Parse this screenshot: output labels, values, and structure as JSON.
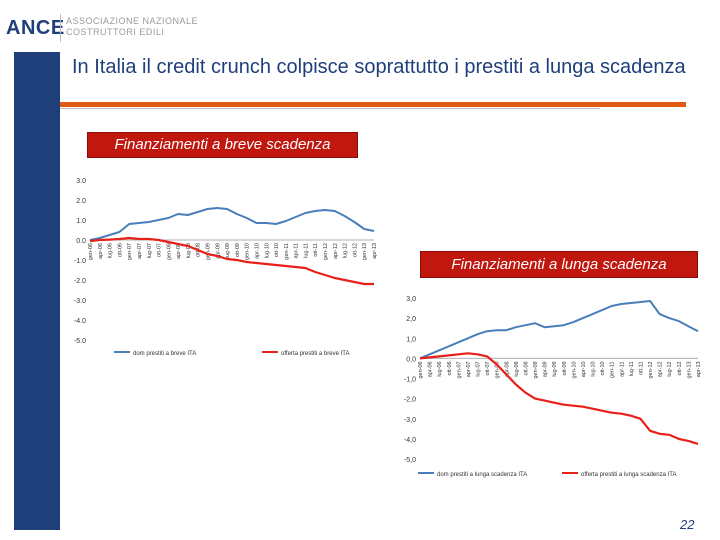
{
  "header": {
    "logo_text": "ANCE",
    "logo_subtitle_1": "ASSOCIAZIONE NAZIONALE",
    "logo_subtitle_2": "COSTRUTTORI EDILI",
    "title": "In Italia il credit crunch colpisce soprattutto i prestiti a lunga scadenza",
    "brand_color": "#1f3f7a",
    "accent_color": "#e05a14"
  },
  "labels": {
    "short_term": "Finanziamenti a breve scadenza",
    "long_term": "Finanziamenti a lunga scadenza"
  },
  "page_number": "22",
  "chart_data": [
    {
      "type": "line",
      "title": "Finanziamenti a breve scadenza",
      "ylim": [
        -5.0,
        3.0
      ],
      "yticks": [
        "3.0",
        "2.0",
        "1.0",
        "0.0",
        "-1.0",
        "-2.0",
        "-3.0",
        "-4.0",
        "-5.0"
      ],
      "ytick_values": [
        3,
        2,
        1,
        0,
        -1,
        -2,
        -3,
        -4,
        -5
      ],
      "categories": [
        "gen-06",
        "apr-06",
        "lug-06",
        "ott-06",
        "gen-07",
        "apr-07",
        "lug-07",
        "ott-07",
        "gen-08",
        "apr-08",
        "lug-08",
        "ott-08",
        "gen-09",
        "apr-09",
        "lug-09",
        "ott-09",
        "gen-10",
        "apr-10",
        "lug-10",
        "ott-10",
        "gen-11",
        "apr-11",
        "lug-11",
        "ott-11",
        "gen-12",
        "apr-12",
        "lug-12",
        "ott-12",
        "gen-13",
        "apr-13"
      ],
      "series": [
        {
          "name": "dom prestiti a breve ITA",
          "color": "#4a7ebb",
          "values": [
            0.0,
            0.1,
            0.25,
            0.4,
            0.8,
            0.85,
            0.9,
            1.0,
            1.1,
            1.3,
            1.25,
            1.4,
            1.55,
            1.6,
            1.55,
            1.3,
            1.1,
            0.85,
            0.85,
            0.8,
            0.95,
            1.15,
            1.35,
            1.45,
            1.5,
            1.45,
            1.2,
            0.9,
            0.55,
            0.45
          ]
        },
        {
          "name": "offerta prestiti a breve ITA",
          "color": "#e8201a",
          "values": [
            -0.05,
            0.0,
            0.02,
            0.05,
            0.1,
            0.05,
            0.05,
            0.0,
            -0.1,
            -0.2,
            -0.3,
            -0.5,
            -0.7,
            -0.8,
            -0.95,
            -1.0,
            -1.1,
            -1.15,
            -1.2,
            -1.25,
            -1.3,
            -1.35,
            -1.4,
            -1.6,
            -1.75,
            -1.9,
            -2.0,
            -2.1,
            -2.2,
            -2.2
          ]
        }
      ]
    },
    {
      "type": "line",
      "title": "Finanziamenti a lunga scadenza",
      "ylim": [
        -5.0,
        3.0
      ],
      "yticks": [
        "3,0",
        "2,0",
        "1,0",
        "0,0",
        "-1,0",
        "-2,0",
        "-3,0",
        "-4,0",
        "-5,0"
      ],
      "ytick_values": [
        3,
        2,
        1,
        0,
        -1,
        -2,
        -3,
        -4,
        -5
      ],
      "categories": [
        "gen-06",
        "apr-06",
        "lug-06",
        "ott-06",
        "gen-07",
        "apr-07",
        "lug-07",
        "ott-07",
        "gen-08",
        "apr-08",
        "lug-08",
        "ott-08",
        "gen-09",
        "apr-09",
        "lug-09",
        "ott-09",
        "gen-10",
        "apr-10",
        "lug-10",
        "ott-10",
        "gen-11",
        "apr-11",
        "lug-11",
        "ott-11",
        "gen-12",
        "apr-12",
        "lug-12",
        "ott-12",
        "gen-13",
        "apr-13"
      ],
      "series": [
        {
          "name": "dom prestiti a lunga scadenza ITA",
          "color": "#4a7ebb",
          "values": [
            0.0,
            0.2,
            0.4,
            0.6,
            0.8,
            1.0,
            1.2,
            1.35,
            1.4,
            1.4,
            1.55,
            1.65,
            1.75,
            1.55,
            1.6,
            1.65,
            1.8,
            2.0,
            2.2,
            2.4,
            2.6,
            2.7,
            2.75,
            2.8,
            2.85,
            2.2,
            2.0,
            1.85,
            1.6,
            1.35
          ]
        },
        {
          "name": "offerta prestiti a lunga scadenza ITA",
          "color": "#e8201a",
          "values": [
            0.0,
            0.05,
            0.1,
            0.15,
            0.2,
            0.25,
            0.2,
            0.1,
            -0.3,
            -0.8,
            -1.3,
            -1.7,
            -2.0,
            -2.1,
            -2.2,
            -2.3,
            -2.35,
            -2.4,
            -2.5,
            -2.6,
            -2.7,
            -2.75,
            -2.85,
            -3.0,
            -3.6,
            -3.75,
            -3.8,
            -4.0,
            -4.1,
            -4.25
          ]
        }
      ]
    }
  ]
}
